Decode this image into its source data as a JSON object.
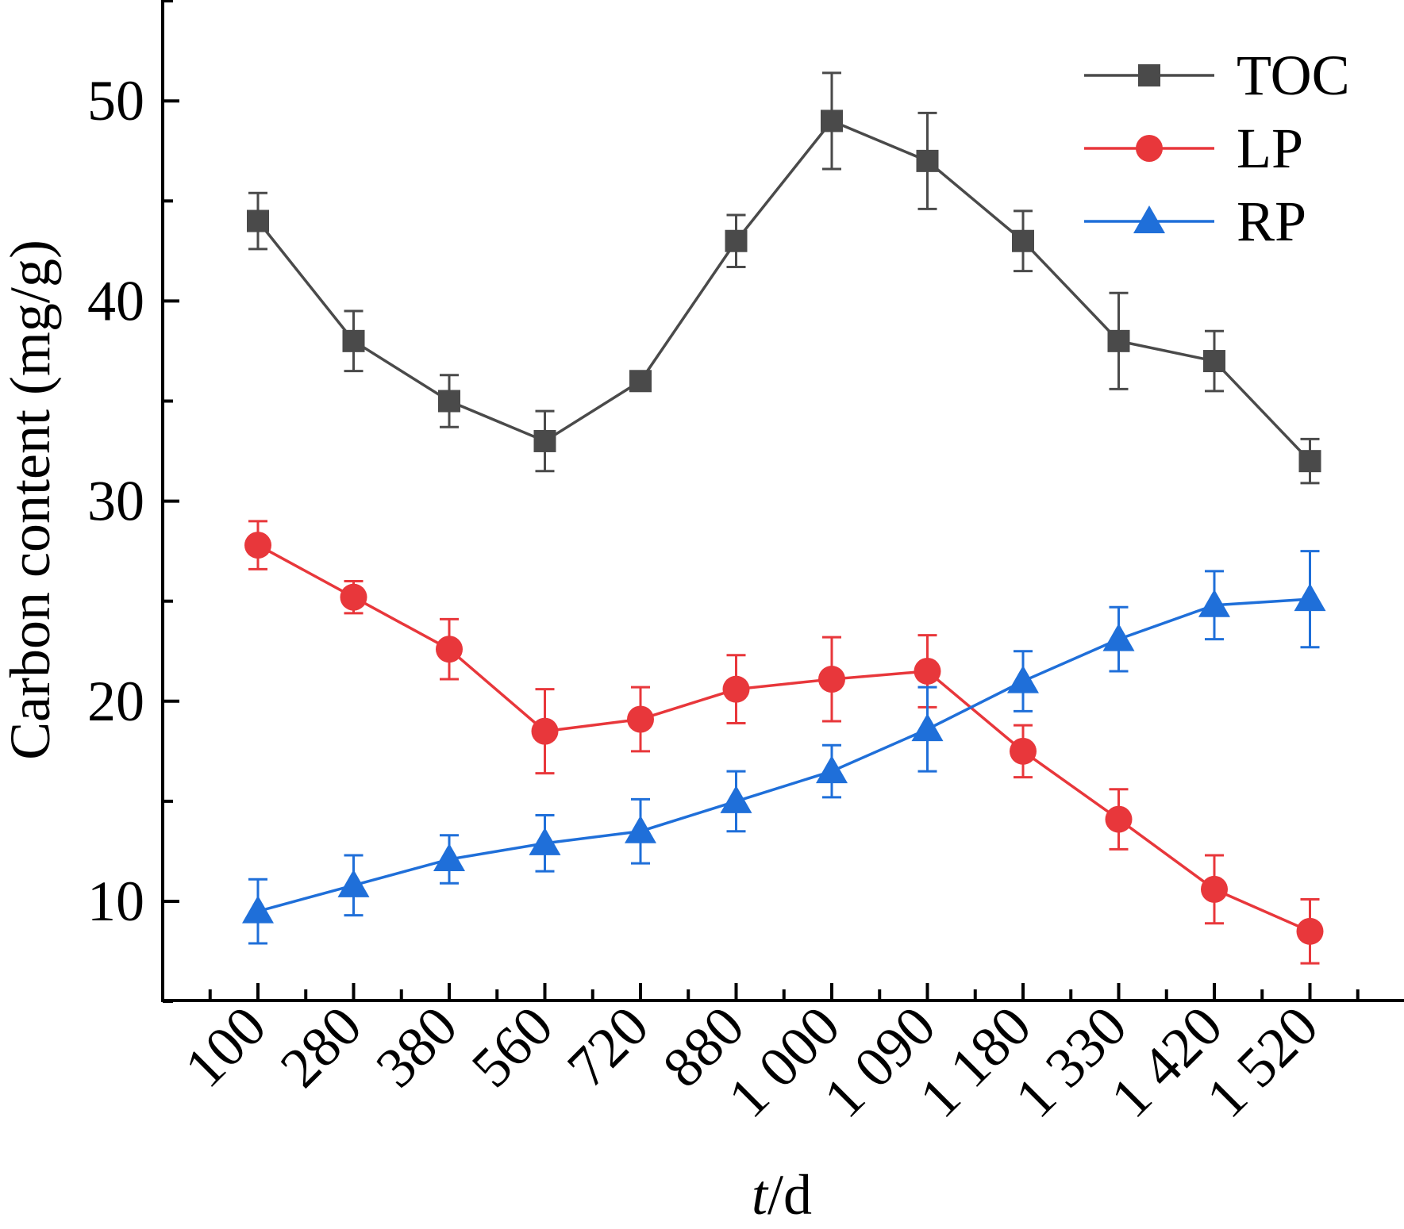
{
  "chart_data": {
    "type": "line",
    "categories": [
      "100",
      "280",
      "380",
      "560",
      "720",
      "880",
      "1 000",
      "1 090",
      "1 180",
      "1 330",
      "1 420",
      "1 520"
    ],
    "series": [
      {
        "name": "TOC",
        "color": "#4a4a4a",
        "marker": "square",
        "values": [
          44.0,
          38.0,
          35.0,
          33.0,
          36.0,
          43.0,
          49.0,
          47.0,
          43.0,
          38.0,
          37.0,
          32.0
        ],
        "errors": [
          1.4,
          1.5,
          1.3,
          1.5,
          0.4,
          1.3,
          2.4,
          2.4,
          1.5,
          2.4,
          1.5,
          1.1
        ]
      },
      {
        "name": "LP",
        "color": "#e8373b",
        "marker": "circle",
        "values": [
          27.8,
          25.2,
          22.6,
          18.5,
          19.1,
          20.6,
          21.1,
          21.5,
          17.5,
          14.1,
          10.6,
          8.5
        ],
        "errors": [
          1.2,
          0.8,
          1.5,
          2.1,
          1.6,
          1.7,
          2.1,
          1.8,
          1.3,
          1.5,
          1.7,
          1.6
        ]
      },
      {
        "name": "RP",
        "color": "#1f6fd9",
        "marker": "triangle",
        "values": [
          9.5,
          10.8,
          12.1,
          12.9,
          13.5,
          15.0,
          16.5,
          18.6,
          21.0,
          23.1,
          24.8,
          25.1
        ],
        "errors": [
          1.6,
          1.5,
          1.2,
          1.4,
          1.6,
          1.5,
          1.3,
          2.1,
          1.5,
          1.6,
          1.7,
          2.4
        ]
      }
    ],
    "xlabel_italic": "t",
    "xlabel_rest": "/d",
    "ylabel": "Carbon content (mg/g)",
    "yticks": [
      "10",
      "20",
      "30",
      "40",
      "50"
    ],
    "ylim": [
      5,
      55
    ],
    "legend_position": "top-right",
    "grid": false
  }
}
